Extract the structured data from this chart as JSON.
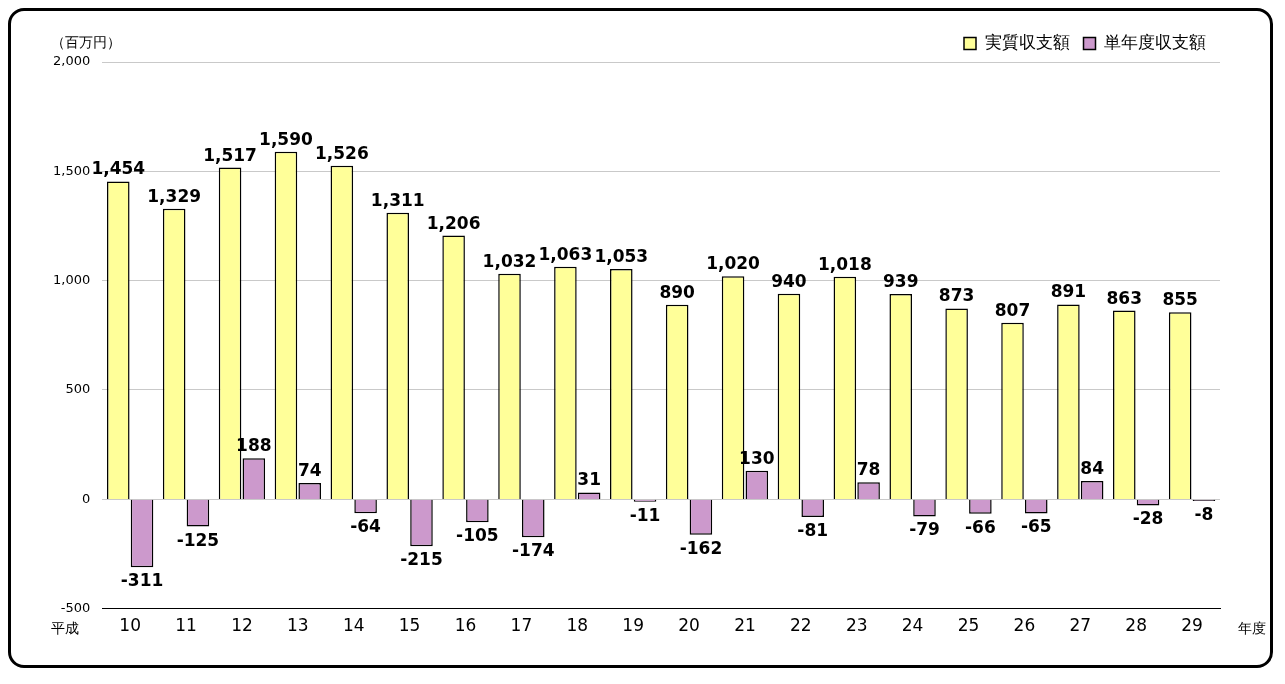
{
  "chart_data": {
    "type": "bar",
    "ylabel": "（百万円）",
    "xlabel": "年度",
    "annotations": [
      "平成"
    ],
    "categories": [
      "10",
      "11",
      "12",
      "13",
      "14",
      "15",
      "16",
      "17",
      "18",
      "19",
      "20",
      "21",
      "22",
      "23",
      "24",
      "25",
      "26",
      "27",
      "28",
      "29"
    ],
    "series": [
      {
        "name": "実質収支額",
        "color": "#ffff99",
        "values": [
          1454,
          1329,
          1517,
          1590,
          1526,
          1311,
          1206,
          1032,
          1063,
          1053,
          890,
          1020,
          940,
          1018,
          939,
          873,
          807,
          891,
          863,
          855
        ],
        "value_labels": [
          "1,454",
          "1,329",
          "1,517",
          "1,590",
          "1,526",
          "1,311",
          "1,206",
          "1,032",
          "1,063",
          "1,053",
          "890",
          "1,020",
          "940",
          "1,018",
          "939",
          "873",
          "807",
          "891",
          "863",
          "855"
        ]
      },
      {
        "name": "単年度収支額",
        "color": "#cc99cc",
        "values": [
          -311,
          -125,
          188,
          74,
          -64,
          -215,
          -105,
          -174,
          31,
          -11,
          -162,
          130,
          -81,
          78,
          -79,
          -66,
          -65,
          84,
          -28,
          -8
        ],
        "value_labels": [
          "-311",
          "-125",
          "188",
          "74",
          "-64",
          "-215",
          "-105",
          "-174",
          "31",
          "-11",
          "-162",
          "130",
          "-81",
          "78",
          "-79",
          "-66",
          "-65",
          "84",
          "-28",
          "-8"
        ]
      }
    ],
    "ylim": [
      -500,
      2000
    ],
    "yticks": [
      -500,
      0,
      500,
      {
        "value": 1000,
        "label": "1,000"
      },
      {
        "value": 1500,
        "label": "1,500"
      },
      {
        "value": 2000,
        "label": "2,000"
      }
    ],
    "grid": "y",
    "legend": "top right"
  }
}
